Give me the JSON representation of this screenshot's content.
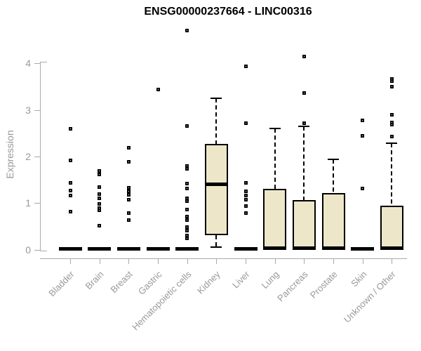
{
  "chart_data": {
    "type": "boxplot",
    "title": "ENSG00000237664 - LINC00316",
    "xlabel": "",
    "ylabel": "Expression",
    "yticks": [
      0,
      1,
      2,
      3,
      4
    ],
    "ylim": [
      0,
      4.85
    ],
    "grid": false,
    "legend": "none",
    "categories": [
      "Bladder",
      "Brain",
      "Breast",
      "Gastric",
      "Hematopoietic cells",
      "Kidney",
      "Liver",
      "Lung",
      "Pancreas",
      "Prostate",
      "Skin",
      "Unknown / Other"
    ],
    "boxes": [
      {
        "category": "Bladder",
        "collapsed": true,
        "q1": 0,
        "median": 0.02,
        "q3": 0.04,
        "whisker_low": 0,
        "whisker_high": 0.04,
        "outliers": [
          2.6,
          1.92,
          1.44,
          1.27,
          1.17,
          0.81
        ]
      },
      {
        "category": "Brain",
        "collapsed": true,
        "q1": 0,
        "median": 0.02,
        "q3": 0.04,
        "whisker_low": 0,
        "whisker_high": 0.04,
        "outliers": [
          1.69,
          1.62,
          1.34,
          1.19,
          1.11,
          0.99,
          0.89,
          0.84,
          0.51
        ]
      },
      {
        "category": "Breast",
        "collapsed": true,
        "q1": 0,
        "median": 0.02,
        "q3": 0.04,
        "whisker_low": 0,
        "whisker_high": 0.04,
        "outliers": [
          2.18,
          1.89,
          1.33,
          1.26,
          1.18,
          1.08,
          0.79,
          0.64
        ]
      },
      {
        "category": "Gastric",
        "collapsed": true,
        "q1": 0,
        "median": 0.02,
        "q3": 0.04,
        "whisker_low": 0,
        "whisker_high": 0.04,
        "outliers": [
          3.44
        ]
      },
      {
        "category": "Hematopoietic cells",
        "collapsed": true,
        "q1": 0,
        "median": 0.02,
        "q3": 0.04,
        "whisker_low": 0,
        "whisker_high": 0.04,
        "outliers": [
          4.7,
          2.65,
          1.79,
          1.73,
          1.42,
          1.32,
          1.1,
          1.04,
          0.86,
          0.71,
          0.64,
          0.49,
          0.41,
          0.31,
          0.24
        ]
      },
      {
        "category": "Kidney",
        "collapsed": false,
        "q1": 0.31,
        "median": 1.4,
        "q3": 2.27,
        "whisker_low": 0.05,
        "whisker_high": 3.25,
        "outliers": []
      },
      {
        "category": "Liver",
        "collapsed": true,
        "q1": 0,
        "median": 0.02,
        "q3": 0.04,
        "whisker_low": 0,
        "whisker_high": 0.04,
        "outliers": [
          3.94,
          2.71,
          1.43,
          1.25,
          1.17,
          1.08,
          0.94,
          0.79
        ]
      },
      {
        "category": "Lung",
        "collapsed": false,
        "q1": 0,
        "median": 0.02,
        "q3": 1.3,
        "whisker_low": 0,
        "whisker_high": 2.6,
        "outliers": []
      },
      {
        "category": "Pancreas",
        "collapsed": false,
        "q1": 0,
        "median": 0.02,
        "q3": 1.06,
        "whisker_low": 0,
        "whisker_high": 2.65,
        "outliers": [
          4.14,
          3.36,
          2.71
        ]
      },
      {
        "category": "Prostate",
        "collapsed": false,
        "q1": 0,
        "median": 0.02,
        "q3": 1.21,
        "whisker_low": 0,
        "whisker_high": 1.94,
        "outliers": []
      },
      {
        "category": "Skin",
        "collapsed": true,
        "q1": 0,
        "median": 0.02,
        "q3": 0.04,
        "whisker_low": 0,
        "whisker_high": 0.04,
        "outliers": [
          2.78,
          2.45,
          1.32
        ]
      },
      {
        "category": "Unknown / Other",
        "collapsed": false,
        "q1": 0,
        "median": 0.02,
        "q3": 0.95,
        "whisker_low": 0,
        "whisker_high": 2.28,
        "outliers": [
          3.66,
          3.62,
          3.5,
          2.9,
          2.73,
          2.69,
          2.43
        ]
      }
    ],
    "colors": {
      "box_fill": "#ede6c8",
      "box_stroke": "#000000",
      "axis": "#aaaaaa",
      "tick_label": "#999999",
      "title": "#000000",
      "background": "#ffffff"
    }
  }
}
